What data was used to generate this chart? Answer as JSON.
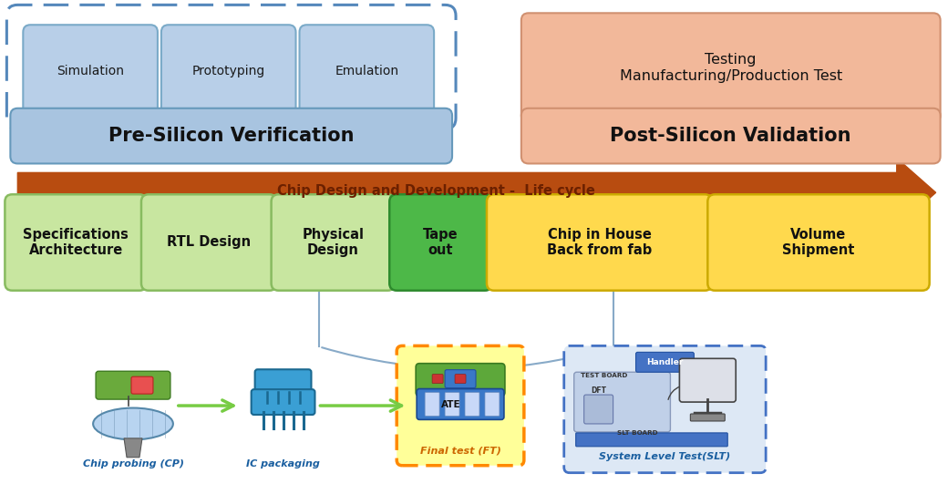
{
  "pre_silicon_boxes": [
    "Simulation",
    "Prototyping",
    "Emulation"
  ],
  "pre_silicon_box_color": "#b8cfe8",
  "pre_silicon_label": "Pre-Silicon Verification",
  "pre_silicon_label_bg": "#a8c4e0",
  "post_silicon_top_label": "Testing\nManufacturing/Production Test",
  "post_silicon_top_bg": "#f2b89a",
  "post_silicon_label": "Post-Silicon Validation",
  "post_silicon_label_bg": "#f2b89a",
  "arrow_color": "#b84c10",
  "arrow_label": "Chip Design and Development -  Life cycle",
  "arrow_label_color": "#6b2000",
  "lifecycle_boxes": [
    {
      "label": "Specifications\nArchitecture",
      "color": "#c8e6a0",
      "edge": "#88bb60"
    },
    {
      "label": "RTL Design",
      "color": "#c8e6a0",
      "edge": "#88bb60"
    },
    {
      "label": "Physical\nDesign",
      "color": "#c8e6a0",
      "edge": "#88bb60"
    },
    {
      "label": "Tape\nout",
      "color": "#4db848",
      "edge": "#2e8b2e"
    },
    {
      "label": "Chip in House\nBack from fab",
      "color": "#ffd94d",
      "edge": "#ccaa00"
    },
    {
      "label": "Volume\nShipment",
      "color": "#ffd94d",
      "edge": "#ccaa00"
    }
  ],
  "bottom_labels": [
    "Chip probing (CP)",
    "IC packaging",
    "Final test (FT)",
    "System Level Test(SLT)"
  ],
  "final_test_bg": "#ffff99",
  "final_test_border": "#ff8800",
  "slt_bg": "#dde8f5",
  "slt_border": "#4472c4"
}
